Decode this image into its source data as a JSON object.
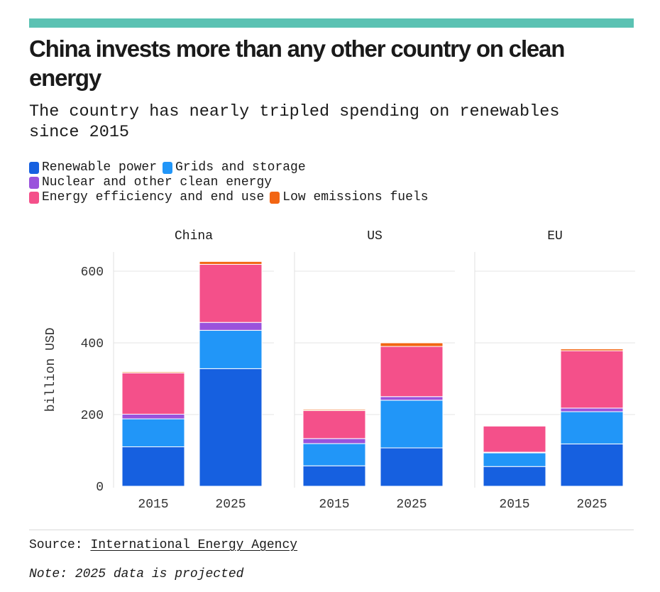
{
  "header": {
    "title": "China invests more than any other country on clean energy",
    "subtitle": "The country has nearly tripled spending on renewables since 2015"
  },
  "legend": {
    "rows": [
      [
        {
          "label": "Renewable power",
          "color": "#1660e0"
        },
        {
          "label": "Grids and storage",
          "color": "#2196f8"
        }
      ],
      [
        {
          "label": "Nuclear and other clean energy",
          "color": "#9a52dc"
        }
      ],
      [
        {
          "label": "Energy efficiency and end use",
          "color": "#f4508a"
        },
        {
          "label": "Low emissions fuels",
          "color": "#f26513"
        }
      ]
    ]
  },
  "chart_data": {
    "type": "bar",
    "stacked": true,
    "ylabel": "billion USD",
    "ylim": [
      0,
      650
    ],
    "yticks": [
      0,
      200,
      400,
      600
    ],
    "grid": true,
    "categories": [
      "2015",
      "2025"
    ],
    "series_names": [
      "Renewable power",
      "Grids and storage",
      "Nuclear and other clean energy",
      "Energy efficiency and end use",
      "Low emissions fuels"
    ],
    "colors": [
      "#1660e0",
      "#2196f8",
      "#9a52dc",
      "#f4508a",
      "#f26513"
    ],
    "panels": [
      {
        "name": "China",
        "values": {
          "2015": [
            110,
            78,
            13,
            115,
            3
          ],
          "2025": [
            328,
            107,
            22,
            162,
            8
          ]
        }
      },
      {
        "name": "US",
        "values": {
          "2015": [
            57,
            62,
            14,
            78,
            3
          ],
          "2025": [
            107,
            133,
            10,
            140,
            10
          ]
        }
      },
      {
        "name": "EU",
        "values": {
          "2015": [
            55,
            38,
            2,
            73,
            2
          ],
          "2025": [
            118,
            90,
            10,
            160,
            5
          ]
        }
      }
    ]
  },
  "footer": {
    "source_label": "Source:",
    "source_name": "International Energy Agency",
    "note": "Note: 2025 data is projected"
  }
}
